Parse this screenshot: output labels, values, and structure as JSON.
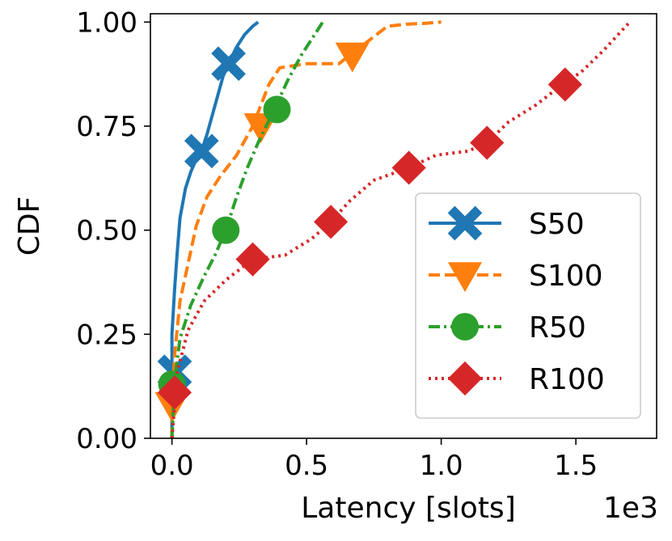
{
  "chart_data": {
    "type": "line",
    "title": "",
    "xlabel": "Latency [slots]",
    "ylabel": "CDF",
    "x_scale_note": "1e3",
    "xlim": [
      -0.08,
      1.8
    ],
    "ylim": [
      0.0,
      1.02
    ],
    "x_ticks": [
      0.0,
      0.5,
      1.0,
      1.5
    ],
    "x_tick_labels": [
      "0.0",
      "0.5",
      "1.0",
      "1.5"
    ],
    "y_ticks": [
      0.0,
      0.25,
      0.5,
      0.75,
      1.0
    ],
    "y_tick_labels": [
      "0.00",
      "0.25",
      "0.50",
      "0.75",
      "1.00"
    ],
    "grid": false,
    "legend_position": "lower-right",
    "series": [
      {
        "name": "S50",
        "color": "#1f77b4",
        "dash": "solid",
        "marker": "x",
        "x": [
          0.0,
          0.0,
          0.0,
          0.0,
          0.0,
          0.01,
          0.02,
          0.03,
          0.05,
          0.07,
          0.09,
          0.11,
          0.13,
          0.16,
          0.19,
          0.21,
          0.24,
          0.27,
          0.3,
          0.32
        ],
        "y": [
          0.0,
          0.1,
          0.15,
          0.2,
          0.25,
          0.36,
          0.45,
          0.53,
          0.6,
          0.64,
          0.67,
          0.69,
          0.73,
          0.8,
          0.87,
          0.9,
          0.94,
          0.97,
          0.99,
          1.0
        ],
        "marker_points": [
          [
            0.01,
            0.16
          ],
          [
            0.11,
            0.69
          ],
          [
            0.21,
            0.9
          ]
        ]
      },
      {
        "name": "S100",
        "color": "#ff7f0e",
        "dash": "dashed",
        "marker": "triangle-down",
        "x": [
          0.0,
          0.0,
          0.01,
          0.03,
          0.06,
          0.09,
          0.13,
          0.18,
          0.24,
          0.3,
          0.33,
          0.36,
          0.4,
          0.5,
          0.58,
          0.62,
          0.66,
          0.72,
          0.8,
          0.87,
          0.94,
          1.0
        ],
        "y": [
          0.0,
          0.09,
          0.2,
          0.33,
          0.42,
          0.51,
          0.58,
          0.63,
          0.68,
          0.75,
          0.8,
          0.85,
          0.89,
          0.9,
          0.9,
          0.9,
          0.92,
          0.95,
          0.99,
          0.995,
          0.997,
          1.0
        ],
        "marker_points": [
          [
            0.0,
            0.08
          ],
          [
            0.33,
            0.75
          ],
          [
            0.67,
            0.92
          ]
        ]
      },
      {
        "name": "R50",
        "color": "#2ca02c",
        "dash": "dashdot",
        "marker": "circle",
        "x": [
          0.0,
          0.01,
          0.03,
          0.07,
          0.12,
          0.16,
          0.2,
          0.24,
          0.28,
          0.32,
          0.35,
          0.38,
          0.43,
          0.48,
          0.52,
          0.56
        ],
        "y": [
          0.0,
          0.14,
          0.24,
          0.32,
          0.39,
          0.44,
          0.5,
          0.58,
          0.65,
          0.71,
          0.75,
          0.79,
          0.86,
          0.92,
          0.96,
          1.0
        ],
        "marker_points": [
          [
            0.0,
            0.13
          ],
          [
            0.2,
            0.5
          ],
          [
            0.39,
            0.79
          ]
        ]
      },
      {
        "name": "R100",
        "color": "#d62728",
        "dash": "dotted",
        "marker": "diamond",
        "x": [
          0.0,
          0.02,
          0.06,
          0.12,
          0.2,
          0.3,
          0.42,
          0.52,
          0.59,
          0.66,
          0.75,
          0.88,
          0.98,
          1.1,
          1.17,
          1.25,
          1.35,
          1.45,
          1.52,
          1.6,
          1.7
        ],
        "y": [
          0.0,
          0.16,
          0.26,
          0.33,
          0.38,
          0.43,
          0.44,
          0.48,
          0.52,
          0.57,
          0.62,
          0.65,
          0.68,
          0.69,
          0.71,
          0.76,
          0.8,
          0.85,
          0.88,
          0.93,
          1.0
        ],
        "marker_points": [
          [
            0.01,
            0.11
          ],
          [
            0.3,
            0.43
          ],
          [
            0.59,
            0.52
          ],
          [
            0.88,
            0.65
          ],
          [
            1.17,
            0.71
          ],
          [
            1.46,
            0.85
          ]
        ]
      }
    ]
  }
}
